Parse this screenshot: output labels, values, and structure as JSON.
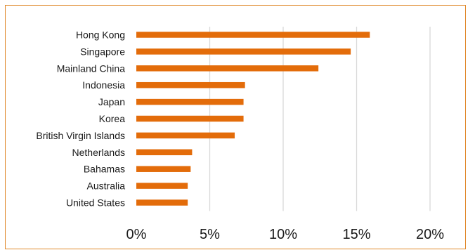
{
  "chart_data": {
    "type": "bar",
    "orientation": "horizontal",
    "title": "",
    "xlabel": "",
    "ylabel": "",
    "categories": [
      "Hong Kong",
      "Singapore",
      "Mainland China",
      "Indonesia",
      "Japan",
      "Korea",
      "British Virgin Islands",
      "Netherlands",
      "Bahamas",
      "Australia",
      "United States"
    ],
    "series": [
      {
        "values": [
          15.9,
          14.6,
          12.4,
          7.4,
          7.3,
          7.3,
          6.7,
          3.8,
          3.7,
          3.5,
          3.5
        ],
        "color": "#e36c0a"
      }
    ],
    "xlim": [
      0,
      20
    ],
    "xticks": [
      0,
      5,
      10,
      15,
      20
    ],
    "xtick_labels": [
      "0%",
      "5%",
      "10%",
      "15%",
      "20%"
    ],
    "grid": "vertical",
    "legend": "none"
  }
}
